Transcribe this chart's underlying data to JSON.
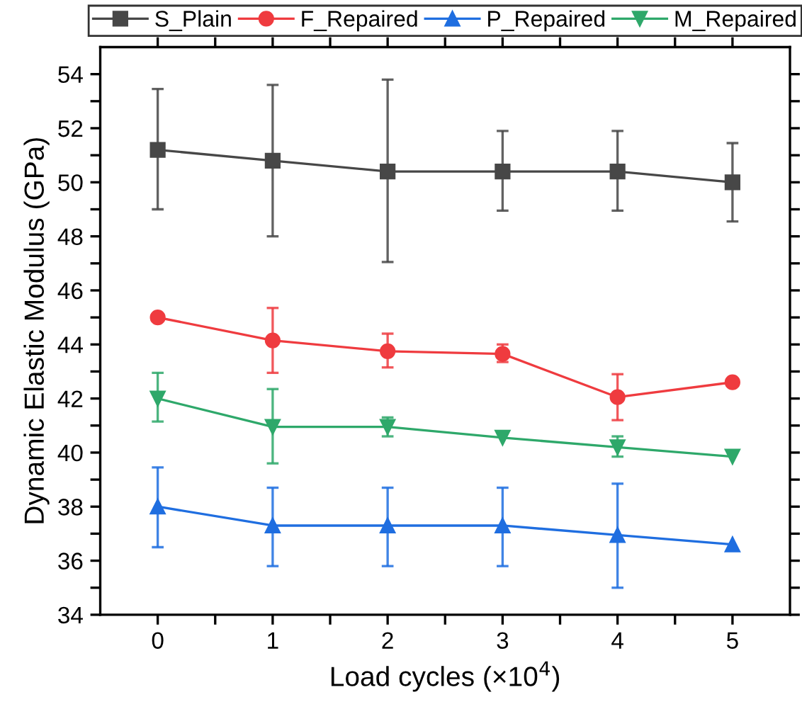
{
  "chart_data": {
    "type": "line",
    "xlabel": "Load cycles (×10$^{4}$)",
    "ylabel": "Dynamic Elastic Modulus (GPa)",
    "x": [
      0,
      1,
      2,
      3,
      4,
      5
    ],
    "series": [
      {
        "name": "S_Plain",
        "color": "#474747",
        "marker": "square",
        "values": [
          51.2,
          50.8,
          50.4,
          50.4,
          50.4,
          50.0
        ],
        "errors": [
          [
            49.0,
            53.45
          ],
          [
            48.0,
            53.6
          ],
          [
            47.05,
            53.8
          ],
          [
            48.95,
            51.9
          ],
          [
            48.95,
            51.9
          ],
          [
            48.55,
            51.45
          ]
        ]
      },
      {
        "name": "F_Repaired",
        "color": "#ef3b3f",
        "marker": "circle",
        "values": [
          45.0,
          44.15,
          43.75,
          43.65,
          42.05,
          42.6
        ],
        "errors": [
          null,
          [
            42.95,
            45.35
          ],
          [
            43.15,
            44.4
          ],
          [
            43.35,
            44.0
          ],
          [
            41.2,
            42.9
          ],
          null
        ]
      },
      {
        "name": "P_Repaired",
        "color": "#1f6ee0",
        "marker": "triangle",
        "values": [
          38.0,
          37.3,
          37.3,
          37.3,
          36.95,
          36.6
        ],
        "errors": [
          [
            36.5,
            39.45
          ],
          [
            35.8,
            38.7
          ],
          [
            35.8,
            38.7
          ],
          [
            35.8,
            38.7
          ],
          [
            35.0,
            38.85
          ],
          null
        ]
      },
      {
        "name": "M_Repaired",
        "color": "#2ea86a",
        "marker": "triangle_down",
        "values": [
          42.0,
          40.95,
          40.95,
          40.55,
          40.2,
          39.85
        ],
        "errors": [
          [
            41.15,
            42.95
          ],
          [
            39.6,
            42.35
          ],
          [
            40.6,
            41.3
          ],
          null,
          [
            39.85,
            40.6
          ],
          null
        ]
      }
    ],
    "xlim": [
      -0.5,
      5.5
    ],
    "xticks": [
      0,
      {
        "value": 0.5,
        "label": null
      },
      1,
      {
        "value": 1.5,
        "label": null
      },
      2,
      {
        "value": 2.5,
        "label": null
      },
      3,
      {
        "value": 3.5,
        "label": null
      },
      4,
      {
        "value": 4.5,
        "label": null
      },
      5
    ],
    "ylim": [
      34,
      55
    ],
    "yticks": [
      34,
      {
        "value": 35,
        "label": null
      },
      36,
      {
        "value": 37,
        "label": null
      },
      38,
      {
        "value": 39,
        "label": null
      },
      40,
      {
        "value": 41,
        "label": null
      },
      42,
      {
        "value": 43,
        "label": null
      },
      44,
      {
        "value": 45,
        "label": null
      },
      46,
      {
        "value": 47,
        "label": null
      },
      48,
      {
        "value": 49,
        "label": null
      },
      50,
      {
        "value": 51,
        "label": null
      },
      52,
      {
        "value": 53,
        "label": null
      },
      54
    ],
    "grid": false,
    "legend": "top",
    "line_style": "solid"
  }
}
